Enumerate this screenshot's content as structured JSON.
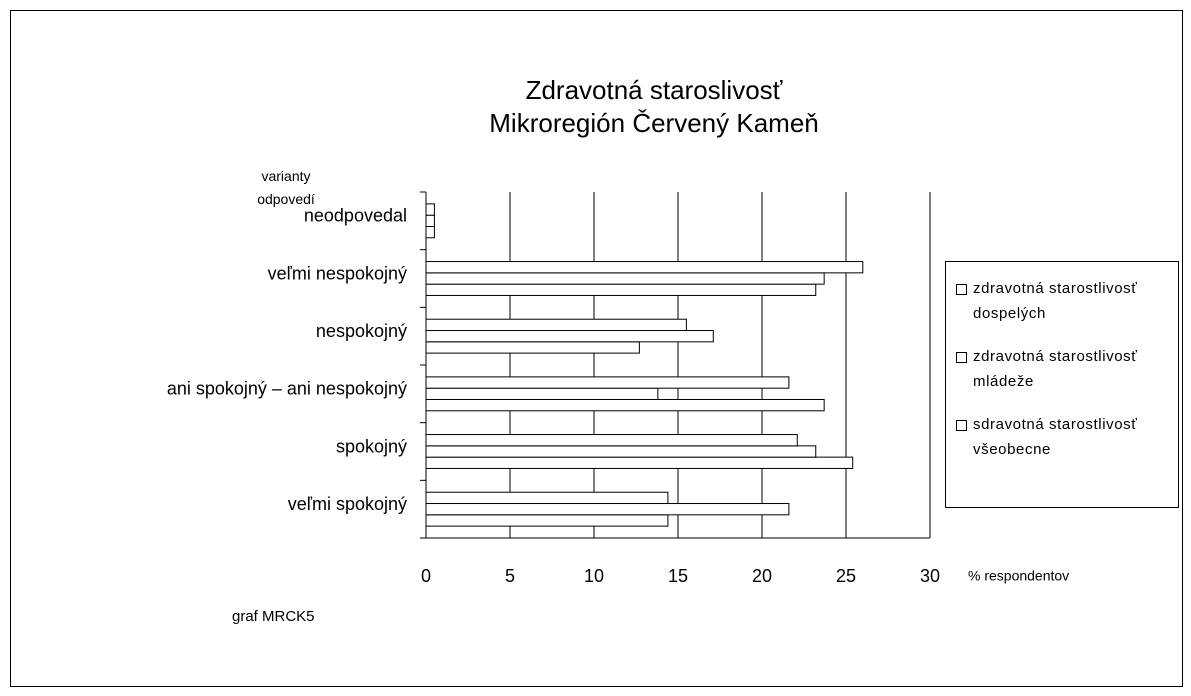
{
  "chart_data": {
    "type": "bar",
    "orientation": "horizontal",
    "title": [
      "Zdravotná staroslivosť",
      "Mikroregión Červený Kameň"
    ],
    "y_axis_label": "varianty odpovedí",
    "x_axis_label": "% respondentov",
    "note": "graf MRCK5",
    "categories": [
      "neodpovedal",
      "veľmi nespokojný",
      "nespokojný",
      "ani spokojný – ani nespokojný",
      "spokojný",
      "veľmi spokojný"
    ],
    "series": [
      {
        "name": "zdravotná starostlivosť dospelých",
        "color": "#ffffff",
        "values": [
          0.5,
          23.2,
          12.7,
          23.7,
          25.4,
          14.4
        ]
      },
      {
        "name": "zdravotná starostlivosť mládeže",
        "color": "#ffffff",
        "values": [
          0.5,
          23.7,
          17.1,
          13.8,
          23.2,
          21.6
        ]
      },
      {
        "name": "sdravotná starostlivosť všeobecne",
        "color": "#ffffff",
        "values": [
          0.5,
          26,
          15.5,
          21.6,
          22.1,
          14.4
        ]
      }
    ],
    "xlim": [
      0,
      30
    ],
    "xticks": [
      0,
      5,
      10,
      15,
      20,
      25,
      30
    ],
    "grid": true,
    "legend": "right"
  }
}
